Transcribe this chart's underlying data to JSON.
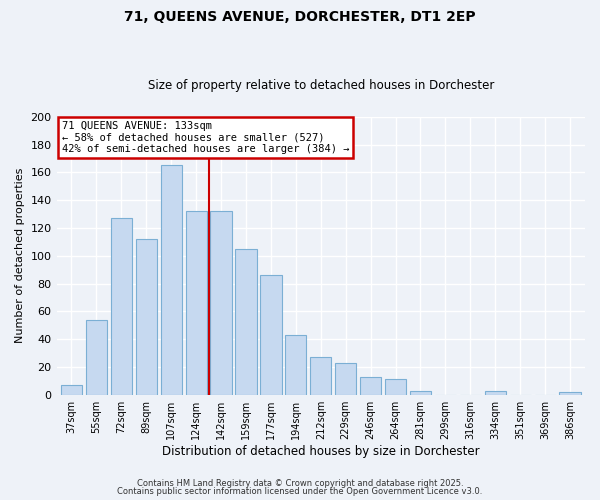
{
  "title": "71, QUEENS AVENUE, DORCHESTER, DT1 2EP",
  "subtitle": "Size of property relative to detached houses in Dorchester",
  "xlabel": "Distribution of detached houses by size in Dorchester",
  "ylabel": "Number of detached properties",
  "bar_labels": [
    "37sqm",
    "55sqm",
    "72sqm",
    "89sqm",
    "107sqm",
    "124sqm",
    "142sqm",
    "159sqm",
    "177sqm",
    "194sqm",
    "212sqm",
    "229sqm",
    "246sqm",
    "264sqm",
    "281sqm",
    "299sqm",
    "316sqm",
    "334sqm",
    "351sqm",
    "369sqm",
    "386sqm"
  ],
  "bar_values": [
    7,
    54,
    127,
    112,
    165,
    132,
    132,
    105,
    86,
    43,
    27,
    23,
    13,
    11,
    3,
    0,
    0,
    3,
    0,
    0,
    2
  ],
  "bar_color": "#c6d9f0",
  "bar_edge_color": "#7bafd4",
  "vline_x": 5.5,
  "vline_color": "#cc0000",
  "annotation_title": "71 QUEENS AVENUE: 133sqm",
  "annotation_line1": "← 58% of detached houses are smaller (527)",
  "annotation_line2": "42% of semi-detached houses are larger (384) →",
  "annotation_box_color": "#ffffff",
  "annotation_border_color": "#cc0000",
  "ylim": [
    0,
    200
  ],
  "yticks": [
    0,
    20,
    40,
    60,
    80,
    100,
    120,
    140,
    160,
    180,
    200
  ],
  "footnote1": "Contains HM Land Registry data © Crown copyright and database right 2025.",
  "footnote2": "Contains public sector information licensed under the Open Government Licence v3.0.",
  "bg_color": "#eef2f8"
}
